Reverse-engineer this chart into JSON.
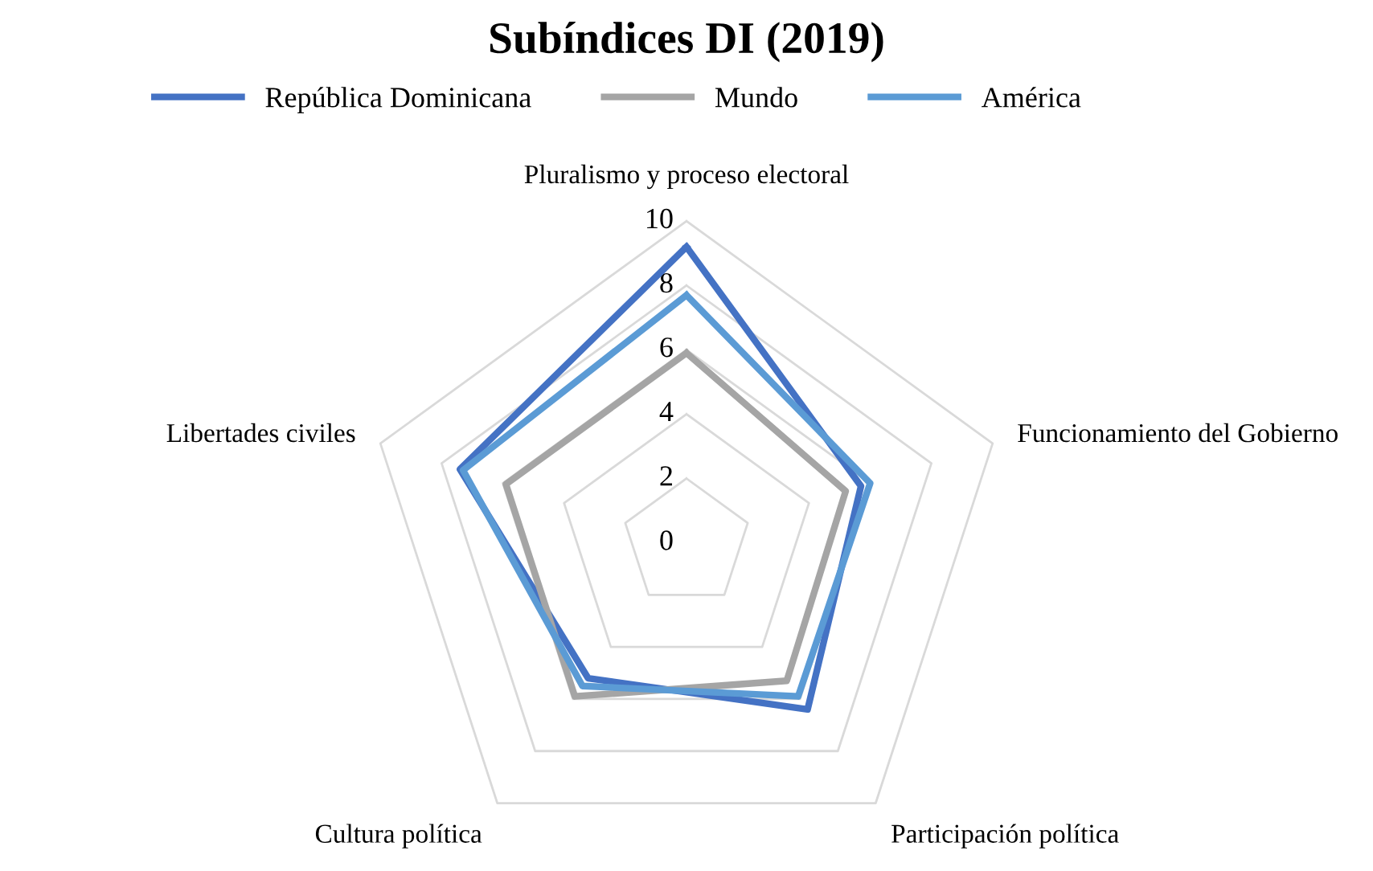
{
  "chart_data": {
    "type": "radar",
    "title": "Subíndices DI (2019)",
    "categories": [
      "Pluralismo y proceso electoral",
      "Funcionamiento del Gobierno",
      "Participación política",
      "Cultura política",
      "Libertades civiles"
    ],
    "series": [
      {
        "name": "República Dominicana",
        "color": "#4472c4",
        "values": [
          9.2,
          5.7,
          6.4,
          5.2,
          7.4
        ]
      },
      {
        "name": "Mundo",
        "color": "#a5a5a5",
        "values": [
          5.9,
          5.2,
          5.3,
          5.9,
          5.9
        ]
      },
      {
        "name": "América",
        "color": "#5b9bd5",
        "values": [
          7.7,
          6.0,
          5.9,
          5.5,
          7.3
        ]
      }
    ],
    "ylim": [
      0,
      10
    ],
    "yticks": [
      0,
      2,
      4,
      6,
      8,
      10
    ],
    "grid": true,
    "legend": "top",
    "marker": "none",
    "line_style": "solid"
  }
}
